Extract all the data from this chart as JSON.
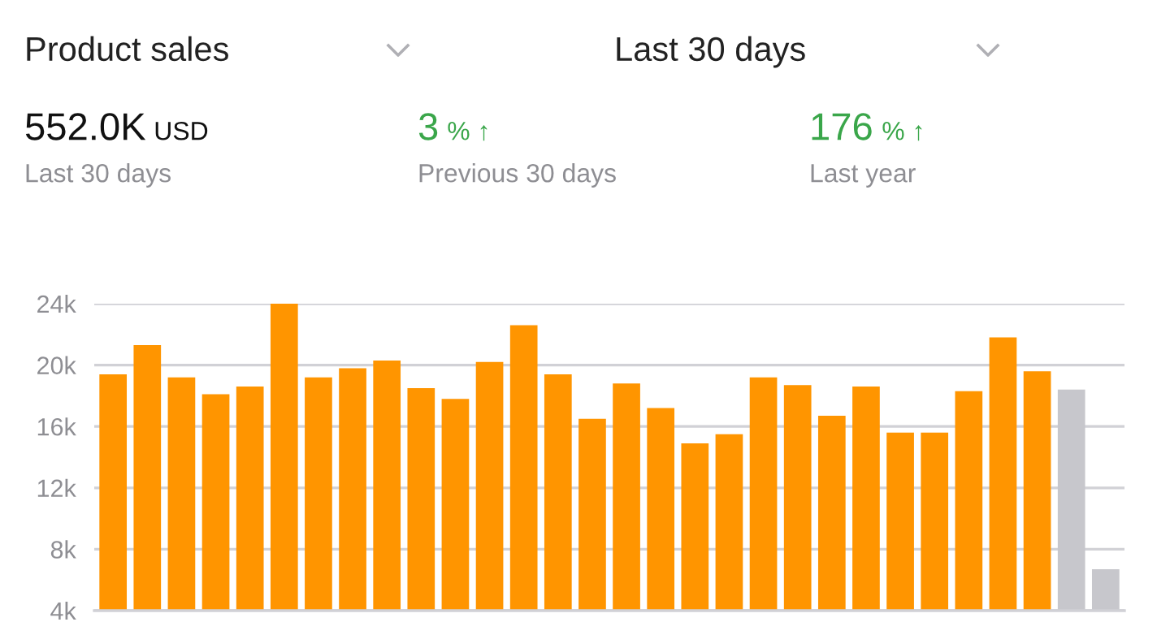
{
  "chart_data": {
    "type": "bar",
    "title": "Product sales",
    "annotations": [
      "Last 30 days",
      "552.0K",
      "USD",
      "Last 30 days",
      "3",
      "% ↑",
      "Previous 30 days",
      "176",
      "% ↑",
      "Last year"
    ],
    "categories": [
      null,
      null,
      null,
      null,
      null,
      null,
      null,
      null,
      null,
      null,
      null,
      null,
      null,
      null,
      null,
      null,
      null,
      null,
      null,
      null,
      null,
      null,
      null,
      null,
      null,
      null,
      null,
      null,
      null,
      null
    ],
    "values": [
      19.4,
      21.3,
      19.2,
      18.1,
      18.6,
      24,
      19.2,
      19.8,
      20.3,
      18.5,
      17.8,
      20.2,
      22.6,
      19.4,
      16.5,
      18.8,
      17.2,
      14.9,
      15.5,
      19.2,
      18.7,
      16.7,
      18.6,
      15.6,
      15.6,
      18.3,
      21.8,
      19.6,
      18.4,
      6.7
    ],
    "colors": [
      "#ff9500",
      "#ff9500",
      "#ff9500",
      "#ff9500",
      "#ff9500",
      "#ff9500",
      "#ff9500",
      "#ff9500",
      "#ff9500",
      "#ff9500",
      "#ff9500",
      "#ff9500",
      "#ff9500",
      "#ff9500",
      "#ff9500",
      "#ff9500",
      "#ff9500",
      "#ff9500",
      "#ff9500",
      "#ff9500",
      "#ff9500",
      "#ff9500",
      "#ff9500",
      "#ff9500",
      "#ff9500",
      "#ff9500",
      "#ff9500",
      "#ff9500",
      "#c7c7cc",
      "#c7c7cc"
    ],
    "ylim": [
      4,
      24
    ],
    "yticks": [
      {
        "value": 4,
        "label": "4k"
      },
      {
        "value": 8,
        "label": "8k"
      },
      {
        "value": 12,
        "label": "12k"
      },
      {
        "value": 16,
        "label": "16k"
      },
      {
        "value": 20,
        "label": "20k"
      },
      {
        "value": 24,
        "label": "24k"
      }
    ],
    "grid": "y"
  }
}
